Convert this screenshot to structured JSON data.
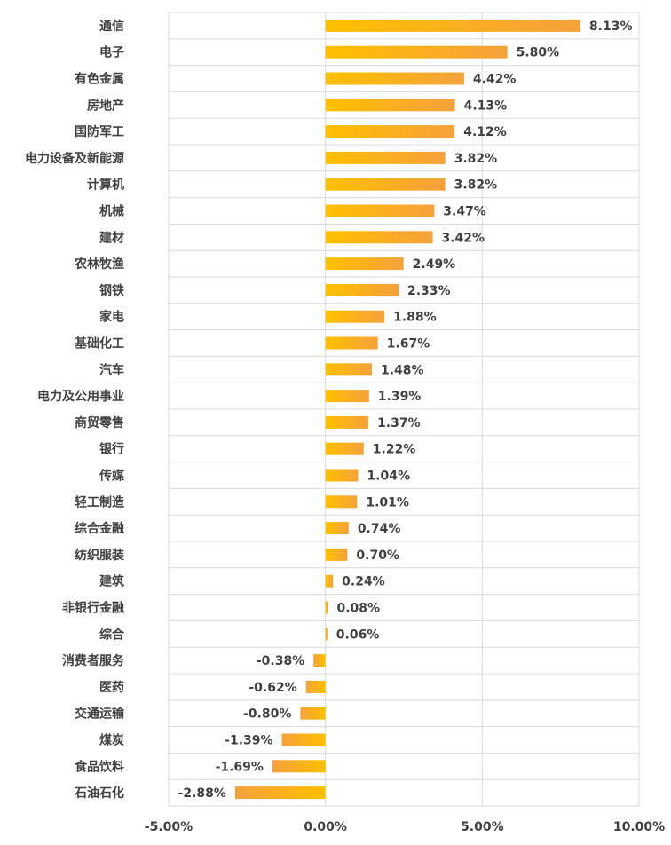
{
  "chart_data": {
    "type": "bar",
    "orientation": "horizontal",
    "title": "",
    "xlabel": "",
    "ylabel": "",
    "xlim": [
      -5,
      10
    ],
    "x_ticks": [
      -5,
      0,
      5,
      10
    ],
    "x_tick_labels": [
      "-5.00%",
      "0.00%",
      "5.00%",
      "10.00%"
    ],
    "grid": true,
    "categories": [
      "通信",
      "电子",
      "有色金属",
      "房地产",
      "国防军工",
      "电力设备及新能源",
      "计算机",
      "机械",
      "建材",
      "农林牧渔",
      "钢铁",
      "家电",
      "基础化工",
      "汽车",
      "电力及公用事业",
      "商贸零售",
      "银行",
      "传媒",
      "轻工制造",
      "综合金融",
      "纺织服装",
      "建筑",
      "非银行金融",
      "综合",
      "消费者服务",
      "医药",
      "交通运输",
      "煤炭",
      "食品饮料",
      "石油石化"
    ],
    "values": [
      8.13,
      5.8,
      4.42,
      4.13,
      4.12,
      3.82,
      3.82,
      3.47,
      3.42,
      2.49,
      2.33,
      1.88,
      1.67,
      1.48,
      1.39,
      1.37,
      1.22,
      1.04,
      1.01,
      0.74,
      0.7,
      0.24,
      0.08,
      0.06,
      -0.38,
      -0.62,
      -0.8,
      -1.39,
      -1.69,
      -2.88
    ],
    "value_labels": [
      "8.13%",
      "5.80%",
      "4.42%",
      "4.13%",
      "4.12%",
      "3.82%",
      "3.82%",
      "3.47%",
      "3.42%",
      "2.49%",
      "2.33%",
      "1.88%",
      "1.67%",
      "1.48%",
      "1.39%",
      "1.37%",
      "1.22%",
      "1.04%",
      "1.01%",
      "0.74%",
      "0.70%",
      "0.24%",
      "0.08%",
      "0.06%",
      "-0.38%",
      "-0.62%",
      "-0.80%",
      "-1.39%",
      "-1.69%",
      "-2.88%"
    ],
    "colors": {
      "bar_gradient_start": "#FFC000",
      "bar_gradient_end": "#F4A13C",
      "label_text": "#404040",
      "grid": "#D9D9D9"
    }
  }
}
